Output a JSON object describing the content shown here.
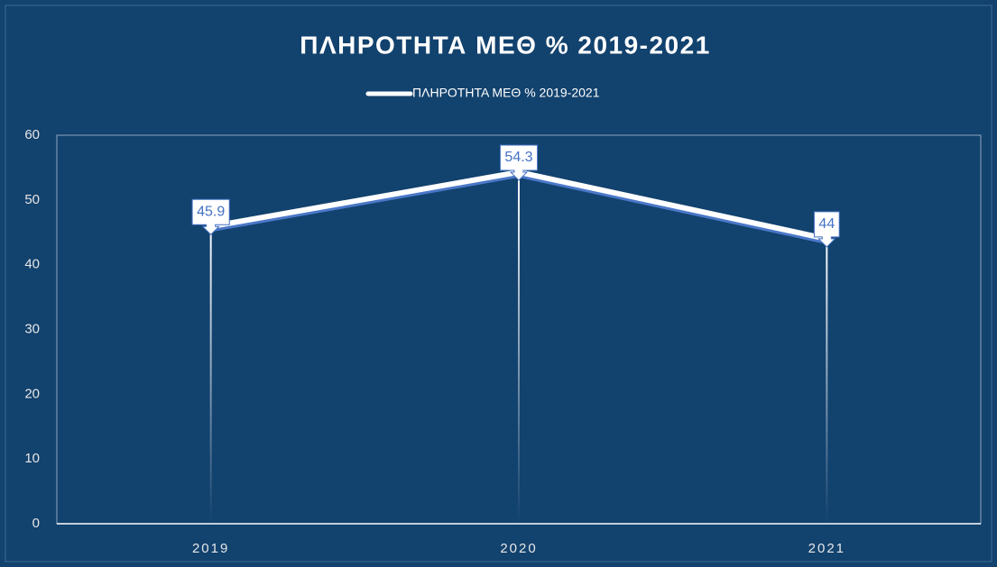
{
  "chart_data": {
    "type": "line",
    "title": "ΠΛΗΡΟΤΗΤΑ ΜΕΘ % 2019-2021",
    "categories": [
      "2019",
      "2020",
      "2021"
    ],
    "series": [
      {
        "name": "ΠΛΗΡΟΤΗΤΑ ΜΕΘ % 2019-2021",
        "color": "#ffffff",
        "values": [
          45.9,
          54.3,
          44
        ]
      }
    ],
    "ylim": [
      0,
      60
    ],
    "yticks": [
      0,
      10,
      20,
      30,
      40,
      50,
      60
    ],
    "legend": "top",
    "grid": false
  }
}
